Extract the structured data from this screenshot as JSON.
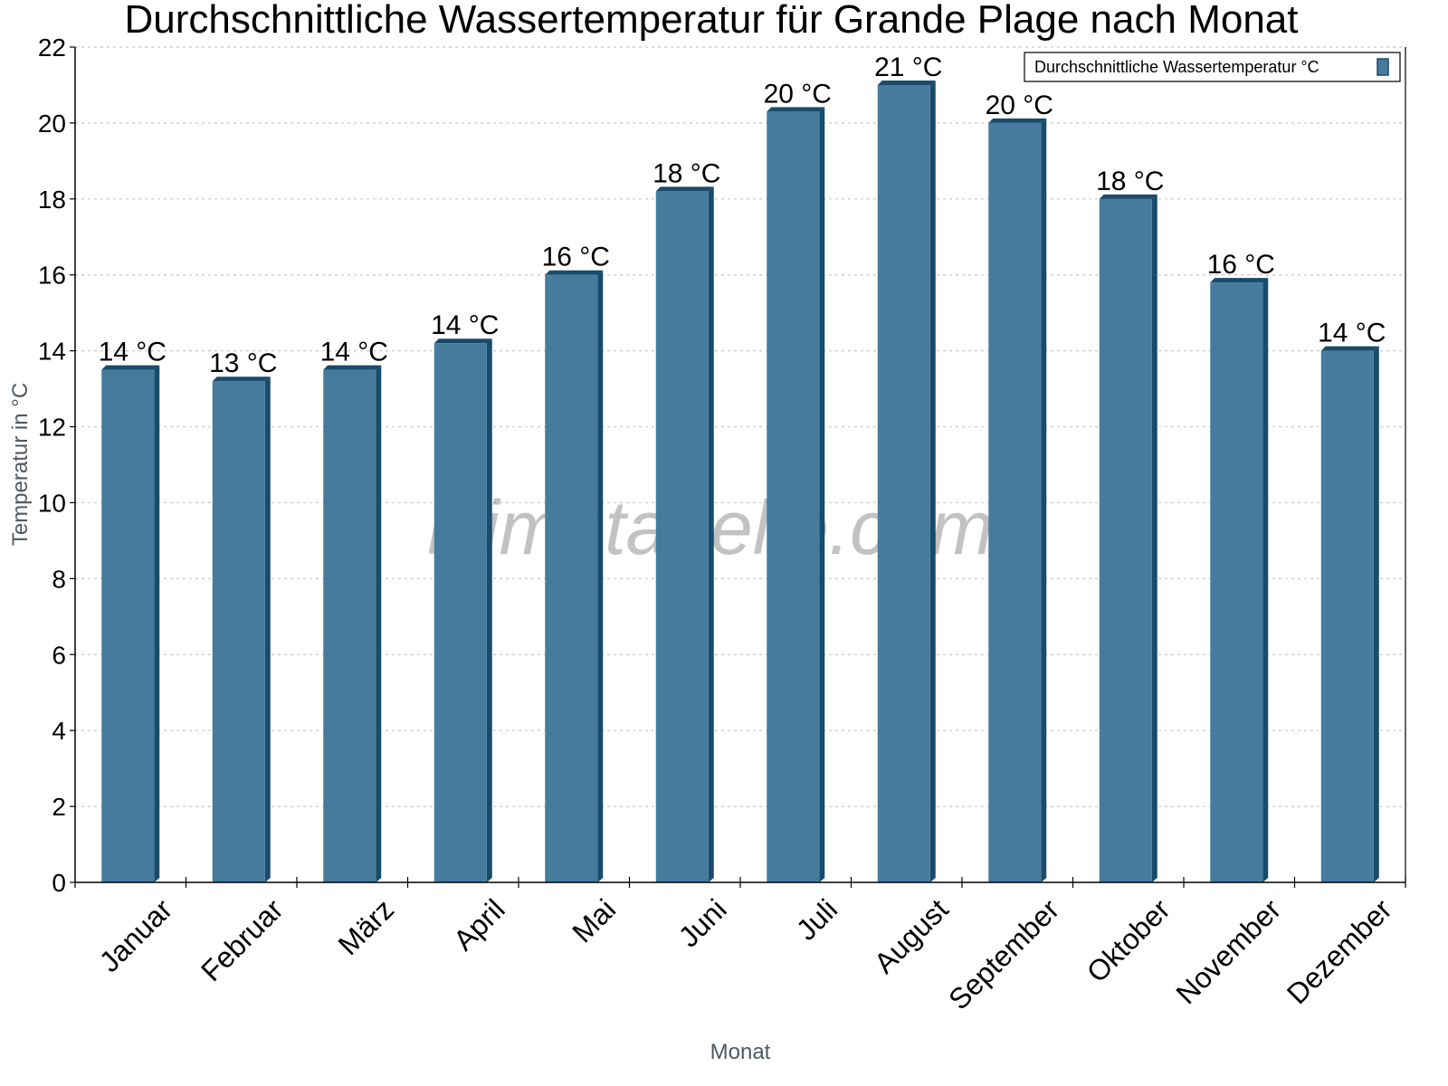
{
  "chart_data": {
    "type": "bar",
    "title": "Durchschnittliche Wassertemperatur für Grande Plage nach Monat",
    "xlabel": "Monat",
    "ylabel": "Temperatur in °C",
    "ylim": [
      0,
      22
    ],
    "yticks": [
      0,
      2,
      4,
      6,
      8,
      10,
      12,
      14,
      16,
      18,
      20,
      22
    ],
    "grid": true,
    "legend_position": "top-right",
    "categories": [
      "Januar",
      "Februar",
      "März",
      "April",
      "Mai",
      "Juni",
      "Juli",
      "August",
      "September",
      "Oktober",
      "November",
      "Dezember"
    ],
    "series": [
      {
        "name": "Durchschnittliche Wassertemperatur °C",
        "color": "#467b9d",
        "values": [
          13.5,
          13.2,
          13.5,
          14.2,
          16.0,
          18.2,
          20.3,
          21.0,
          20.0,
          18.0,
          15.8,
          14.0
        ],
        "labels": [
          "14 °C",
          "13 °C",
          "14 °C",
          "14 °C",
          "16 °C",
          "18 °C",
          "20 °C",
          "21 °C",
          "20 °C",
          "18 °C",
          "16 °C",
          "14 °C"
        ]
      }
    ],
    "watermark": "klimatabelle.com"
  },
  "colors": {
    "bar_face": "#467b9d",
    "bar_side": "#184b6c",
    "grid": "#c8c8c8",
    "axis": "#000000"
  }
}
